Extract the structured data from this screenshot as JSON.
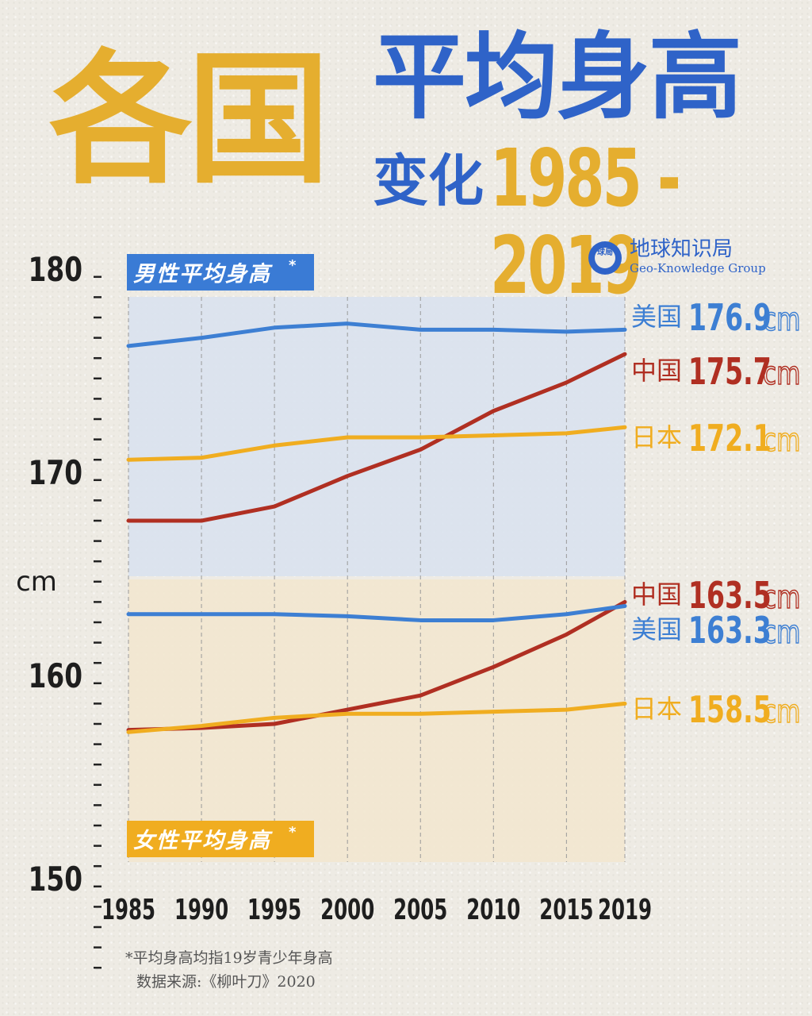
{
  "title": {
    "main_yellow": "各国",
    "main_blue": "平均身高",
    "sub": "变化",
    "years": "1985 - 2019"
  },
  "logo": {
    "icon": "globe-icon",
    "badge": "球局",
    "name_cn": "地球知识局",
    "name_en": "Geo-Knowledge Group"
  },
  "footnote": {
    "line1": "*平均身高均指19岁青少年身高",
    "line2": "数据来源:《柳叶刀》2020"
  },
  "colors": {
    "usa": "#3d7fd3",
    "china": "#b02f22",
    "japan": "#f0ad20",
    "male_band": "#d9e2ee",
    "female_band": "#f2e7cf",
    "male_tag": "#3a7bd5",
    "female_tag": "#f0ad20"
  },
  "chart_data": {
    "type": "line",
    "unit": "cm",
    "ylabel": "cm",
    "ylim": [
      150,
      180
    ],
    "y_major_ticks": [
      150,
      160,
      170,
      180
    ],
    "x": [
      "1985",
      "1990",
      "1995",
      "2000",
      "2005",
      "2010",
      "2015",
      "2019"
    ],
    "grid": "vertical dashed",
    "panels": [
      {
        "label": "男性平均身高",
        "label_mark": "*",
        "series": [
          {
            "name": "美国",
            "color_key": "usa",
            "values": [
              176.1,
              176.5,
              177.0,
              177.2,
              176.9,
              176.9,
              176.8,
              176.9
            ],
            "end_label": "176.9",
            "end_unit": "cm"
          },
          {
            "name": "中国",
            "color_key": "china",
            "values": [
              167.5,
              167.5,
              168.2,
              169.7,
              171.0,
              172.9,
              174.3,
              175.7
            ],
            "end_label": "175.7",
            "end_unit": "cm"
          },
          {
            "name": "日本",
            "color_key": "japan",
            "values": [
              170.5,
              170.6,
              171.2,
              171.6,
              171.6,
              171.7,
              171.8,
              172.1
            ],
            "end_label": "172.1",
            "end_unit": "cm"
          }
        ]
      },
      {
        "label": "女性平均身高",
        "label_mark": "*",
        "series": [
          {
            "name": "中国",
            "color_key": "china",
            "values": [
              157.2,
              157.3,
              157.5,
              158.2,
              158.9,
              160.3,
              161.9,
              163.5
            ],
            "end_label": "163.5",
            "end_unit": "cm"
          },
          {
            "name": "美国",
            "color_key": "usa",
            "values": [
              162.9,
              162.9,
              162.9,
              162.8,
              162.6,
              162.6,
              162.9,
              163.3
            ],
            "end_label": "163.3",
            "end_unit": "cm"
          },
          {
            "name": "日本",
            "color_key": "japan",
            "values": [
              157.1,
              157.4,
              157.8,
              158.0,
              158.0,
              158.1,
              158.2,
              158.5
            ],
            "end_label": "158.5",
            "end_unit": "cm"
          }
        ]
      }
    ]
  }
}
